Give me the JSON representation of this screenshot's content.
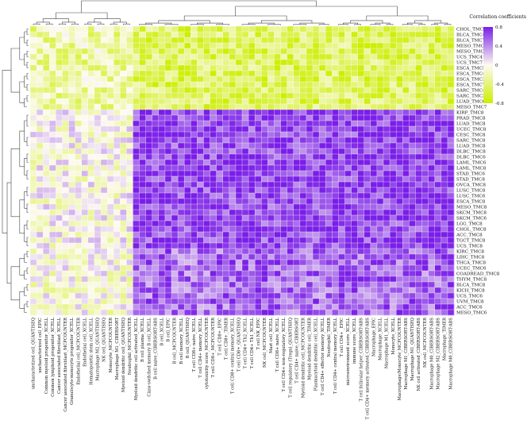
{
  "chart_data": {
    "type": "heatmap",
    "title": "",
    "xlabel": "",
    "ylabel": "",
    "legend": {
      "title": "Correlation coefficients",
      "ticks": [
        0.8,
        0.4,
        0,
        -0.4,
        -0.8
      ],
      "range": [
        -0.8,
        0.8
      ],
      "colors": {
        "low": "#ccee00",
        "mid": "#fdfaf2",
        "high": "#7a1ee8"
      },
      "placement": "top-right"
    },
    "rows": [
      "CHOL_TMC4",
      "BLCA_TMC4",
      "BLCA_TMC7",
      "MESO_TMC4",
      "MESO_TMC3",
      "UCS_TMC4",
      "UCS_TMC7",
      "ESCA_TMC5",
      "ESCA_TMC4",
      "ESCA_TMC3",
      "ESCA_TMC7",
      "SARC_TMC4",
      "SARC_TMC3",
      "LUAD_TMC6",
      "MESO_TMC7",
      "KIRP_TMC8",
      "PRAD_TMC8",
      "LUAD_TMC8",
      "UCEC_TMC8",
      "CESC_TMC8",
      "SARC_TMC8",
      "LUAD_TMC8",
      "DLBC_TMC8",
      "DLBC_TMC6",
      "LAML_TMC6",
      "LAML_TMC8",
      "STAD_TMC6",
      "STAD_TMC8",
      "OVCA_TMC8",
      "LUSC_TMC8",
      "LUSC_TMC6",
      "ESCA_TMC8",
      "MESO_TMC8",
      "SKCM_TMC8",
      "SKCM_TMC6",
      "LGG_TMC8",
      "CHOL_TMC8",
      "ACC_TMC8",
      "TGCT_TMC8",
      "UCS_TMC8",
      "KIRC_TMC8",
      "LIHC_TMC8",
      "THCA_TMC8",
      "UCEC_TMC6",
      "COADREAD_TMC8",
      "THYM_TMC8",
      "BLCA_TMC8",
      "KICH_TMC8",
      "UCS_TMC6",
      "UVM_TMC8",
      "ACC_TMC6",
      "MESO_TMC6"
    ],
    "columns": [
      "uncharacterized cell_QUANTISEQ",
      "uncharacterized cell_EPIC",
      "Common myeloid progenitor_XCELL",
      "Common lymphoid progenitor_XCELL",
      "Cancer associated fibroblast_XCELL",
      "Cancer associated fibroblast_MCPCOUNTER",
      "Granulocyte-monocyte progenitor_XCELL",
      "Endothelial cell_MCPCOUNTER",
      "Endothelial cell_XCELL",
      "Hematopoietic stem cell_XCELL",
      "Macrophage M2_QUANTISEQ",
      "NK cell_QUANTISEQ",
      "Monocyte_MCPCOUNTER",
      "Macrophage M1_CIBERSORT",
      "Myeloid dendritic cell_QUANTISEQ",
      "Neutrophil_MCPCOUNTER",
      "Myeloid dendritic cell activated_XCELL",
      "B cell plasma_XCELL",
      "Class-switched memory B cell_XCELL",
      "B cell naive_CIBERSORT-ABS",
      "B cell_XCELL",
      "B cell_EPIC",
      "B cell_MCPCOUNTER",
      "B cell memory_XCELL",
      "B cell_QUANTISEQ",
      "T cell CD8+ naive_XCELL",
      "T cell CD4+ memory_XCELL",
      "cytotoxicity score_MCPCOUNTER",
      "T cell CD8+_MCPCOUNTER",
      "T cell CD8+_EPIC",
      "T cell CD8+_TIMER",
      "T cell CD8+ central memory_XCELL",
      "T cell CD8+_QUANTISEQ",
      "T cell CD4+ Th2_XCELL",
      "T cell CD4+ Th1_XCELL",
      "T cell NK_EPIC",
      "NK cell_MCPCOUNTER",
      "Mast cell_XCELL",
      "T cell CD8+ naive_XCELL",
      "T cell CD4+ non-regulatory_XCELL",
      "T cell regulatory (Tregs)_QUANTISEQ",
      "T cell CD4+ naive_CIBERSORT",
      "Myeloid dendritic cell_MCPCOUNTER",
      "Myeloid dendritic cell_TIMER",
      "Plasmacytoid dendritic cell_XCELL",
      "T cell CD4+ effector memory_XCELL",
      "Neutrophil_TIMER",
      "T cell CD4+ central memory_XCELL",
      "T cell CD4+ _EPIC",
      "microenvironment score_XCELL",
      "immune score_XCELL",
      "T cell follicular helper_CIBERSORT-ABS",
      "T cell CD4+ memory activated_CIBERSORT-ABS",
      "Macrophage_EPIC",
      "Macrophage_XCELL",
      "Macrophage M1_XCELL",
      "Monocyte_XCELL",
      "Macrophage/Monocyte_MCPCOUNTER",
      "Macrophage M1_CIBERSORT-ABS",
      "Macrophage M1_QUANTISEQ",
      "NK cell activated_CIBERSORT-ABS",
      "NK cell_MCPCOUNTER",
      "Macrophage M0_CIBERSORT-ABS",
      "Macrophage M2_CIBERSORT-ABS",
      "Macrophage_TIMER",
      "Macrophage M0_CIBERSORT-ABS"
    ],
    "row_groups": [
      {
        "from": 0,
        "to": 14,
        "mean": -0.45
      },
      {
        "from": 15,
        "to": 39,
        "mean": 0.42
      },
      {
        "from": 40,
        "to": 51,
        "mean": 0.28
      }
    ],
    "column_groups": [
      {
        "from": 0,
        "to": 15,
        "mean": -0.35
      },
      {
        "from": 16,
        "to": 46,
        "mean": 0.4
      },
      {
        "from": 47,
        "to": 65,
        "mean": 0.45
      }
    ],
    "dendrogram": {
      "rows": true,
      "columns": true
    }
  }
}
